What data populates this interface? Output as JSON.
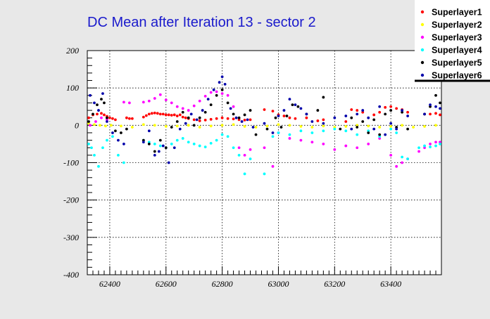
{
  "chart_data": {
    "type": "scatter",
    "title": "DC Mean after Iteration 13 - sector 2",
    "xlabel": "",
    "ylabel": "",
    "xlim": [
      62320,
      63580
    ],
    "ylim": [
      -400,
      200
    ],
    "x_ticks": [
      62400,
      62600,
      62800,
      63000,
      63200,
      63400
    ],
    "y_ticks": [
      -400,
      -300,
      -200,
      -100,
      0,
      100,
      200
    ],
    "grid": true,
    "legend_position": "top-right",
    "series": [
      {
        "name": "Superlayer1",
        "color": "#ff0000",
        "x": [
          62325,
          62340,
          62355,
          62370,
          62380,
          62390,
          62400,
          62410,
          62420,
          62460,
          62470,
          62480,
          62520,
          62530,
          62540,
          62550,
          62560,
          62570,
          62580,
          62590,
          62600,
          62610,
          62620,
          62630,
          62640,
          62650,
          62660,
          62670,
          62680,
          62700,
          62720,
          62740,
          62760,
          62780,
          62800,
          62820,
          62840,
          62860,
          62880,
          62900,
          62950,
          62980,
          63000,
          63020,
          63040,
          63060,
          63100,
          63140,
          63160,
          63240,
          63260,
          63280,
          63300,
          63340,
          63360,
          63380,
          63400,
          63420,
          63440,
          63460,
          63520,
          63540,
          63560,
          63575
        ],
        "y": [
          20,
          28,
          30,
          32,
          28,
          24,
          20,
          18,
          15,
          20,
          18,
          18,
          22,
          26,
          30,
          32,
          33,
          32,
          30,
          30,
          28,
          28,
          27,
          28,
          25,
          28,
          22,
          20,
          18,
          15,
          12,
          14,
          16,
          18,
          20,
          18,
          17,
          15,
          14,
          15,
          42,
          38,
          28,
          25,
          20,
          18,
          20,
          12,
          15,
          10,
          42,
          40,
          35,
          28,
          35,
          48,
          50,
          45,
          42,
          35,
          30,
          30,
          32,
          28
        ]
      },
      {
        "name": "Superlayer2",
        "color": "#ffff00",
        "x": [
          62325,
          62345,
          62365,
          62385,
          62405,
          62440,
          62480,
          62520,
          62560,
          62600,
          62640,
          62680,
          62720,
          62760,
          62800,
          62840,
          62880,
          62920,
          62960,
          63000,
          63040,
          63080,
          63120,
          63160,
          63200,
          63240,
          63280,
          63320,
          63360,
          63400,
          63440,
          63480,
          63520,
          63560
        ],
        "y": [
          5,
          2,
          0,
          -2,
          0,
          -2,
          -5,
          2,
          0,
          -3,
          -2,
          0,
          -5,
          -2,
          0,
          2,
          -3,
          -5,
          -2,
          2,
          0,
          -3,
          -5,
          -2,
          -5,
          -3,
          0,
          -2,
          -5,
          -3,
          0,
          -5,
          -3,
          0
        ]
      },
      {
        "name": "Superlayer3",
        "color": "#ff00ff",
        "x": [
          62330,
          62350,
          62370,
          62390,
          62450,
          62470,
          62520,
          62540,
          62560,
          62580,
          62600,
          62620,
          62640,
          62660,
          62680,
          62700,
          62720,
          62740,
          62760,
          62780,
          62800,
          62820,
          62840,
          62860,
          62880,
          62900,
          62950,
          62980,
          63000,
          63040,
          63080,
          63120,
          63160,
          63200,
          63240,
          63280,
          63320,
          63360,
          63400,
          63420,
          63440,
          63460,
          63500,
          63520,
          63540,
          63560,
          63575
        ],
        "y": [
          0,
          10,
          20,
          15,
          62,
          60,
          62,
          65,
          72,
          82,
          68,
          60,
          50,
          45,
          40,
          52,
          65,
          78,
          88,
          90,
          85,
          80,
          50,
          -60,
          -80,
          -65,
          -60,
          -110,
          -20,
          -35,
          -40,
          -45,
          -50,
          -65,
          -55,
          -60,
          -50,
          -35,
          -80,
          -110,
          -100,
          -90,
          -70,
          -60,
          -50,
          -45,
          -45
        ]
      },
      {
        "name": "Superlayer4",
        "color": "#00ffff",
        "x": [
          62325,
          62335,
          62345,
          62360,
          62375,
          62390,
          62410,
          62430,
          62450,
          62520,
          62540,
          62560,
          62580,
          62600,
          62620,
          62640,
          62660,
          62680,
          62700,
          62720,
          62740,
          62760,
          62780,
          62800,
          62820,
          62840,
          62860,
          62880,
          62900,
          62950,
          62980,
          63000,
          63040,
          63080,
          63120,
          63160,
          63200,
          63240,
          63280,
          63320,
          63360,
          63400,
          63420,
          63440,
          63460,
          63500,
          63520,
          63540,
          63560,
          63575
        ],
        "y": [
          -50,
          -60,
          -80,
          -110,
          -60,
          -40,
          -30,
          -80,
          -100,
          -40,
          -45,
          -50,
          -55,
          -60,
          -50,
          -40,
          -35,
          -45,
          -50,
          -55,
          -58,
          -48,
          -40,
          -25,
          -30,
          -60,
          -80,
          -130,
          -90,
          -130,
          -30,
          -20,
          -25,
          -15,
          -20,
          -15,
          -10,
          -15,
          -25,
          -15,
          -30,
          -10,
          -20,
          -85,
          -90,
          -60,
          -55,
          -58,
          -55,
          -50
        ]
      },
      {
        "name": "Superlayer5",
        "color": "#000000",
        "x": [
          62325,
          62340,
          62355,
          62370,
          62380,
          62390,
          62420,
          62440,
          62460,
          62520,
          62540,
          62560,
          62580,
          62600,
          62620,
          62640,
          62660,
          62680,
          62700,
          62720,
          62740,
          62760,
          62780,
          62800,
          62820,
          62840,
          62860,
          62880,
          62900,
          62920,
          62960,
          62990,
          63010,
          63030,
          63050,
          63070,
          63100,
          63140,
          63160,
          63220,
          63260,
          63280,
          63300,
          63320,
          63340,
          63360,
          63380,
          63400,
          63420,
          63440,
          63460,
          63520,
          63540,
          63560,
          63575
        ],
        "y": [
          10,
          30,
          55,
          70,
          60,
          20,
          -15,
          -20,
          -10,
          -40,
          -50,
          -70,
          -40,
          -60,
          -5,
          10,
          35,
          20,
          0,
          20,
          35,
          55,
          80,
          95,
          60,
          30,
          20,
          28,
          40,
          -25,
          -10,
          20,
          -5,
          25,
          55,
          50,
          30,
          40,
          75,
          -10,
          20,
          -5,
          10,
          -20,
          15,
          -25,
          30,
          40,
          -5,
          35,
          -10,
          30,
          50,
          80,
          60
        ]
      },
      {
        "name": "Superlayer6",
        "color": "#0000aa",
        "x": [
          62330,
          62345,
          62360,
          62375,
          62390,
          62410,
          62430,
          62450,
          62520,
          62540,
          62560,
          62575,
          62590,
          62610,
          62630,
          62650,
          62670,
          62690,
          62710,
          62730,
          62750,
          62770,
          62790,
          62800,
          62810,
          62830,
          62850,
          62870,
          62890,
          62910,
          62950,
          62980,
          63000,
          63020,
          63040,
          63060,
          63080,
          63100,
          63120,
          63160,
          63200,
          63240,
          63260,
          63280,
          63300,
          63320,
          63340,
          63360,
          63380,
          63400,
          63420,
          63440,
          63460,
          63520,
          63540,
          63560,
          63575
        ],
        "y": [
          80,
          60,
          40,
          85,
          10,
          -20,
          -40,
          -50,
          -45,
          -15,
          -80,
          -70,
          -55,
          -100,
          -60,
          -10,
          5,
          30,
          15,
          40,
          70,
          95,
          115,
          130,
          110,
          45,
          20,
          10,
          15,
          -5,
          5,
          -20,
          25,
          40,
          70,
          55,
          45,
          30,
          10,
          5,
          20,
          25,
          -10,
          30,
          40,
          20,
          -10,
          50,
          -25,
          5,
          -10,
          40,
          25,
          30,
          55,
          50,
          45
        ]
      }
    ]
  }
}
